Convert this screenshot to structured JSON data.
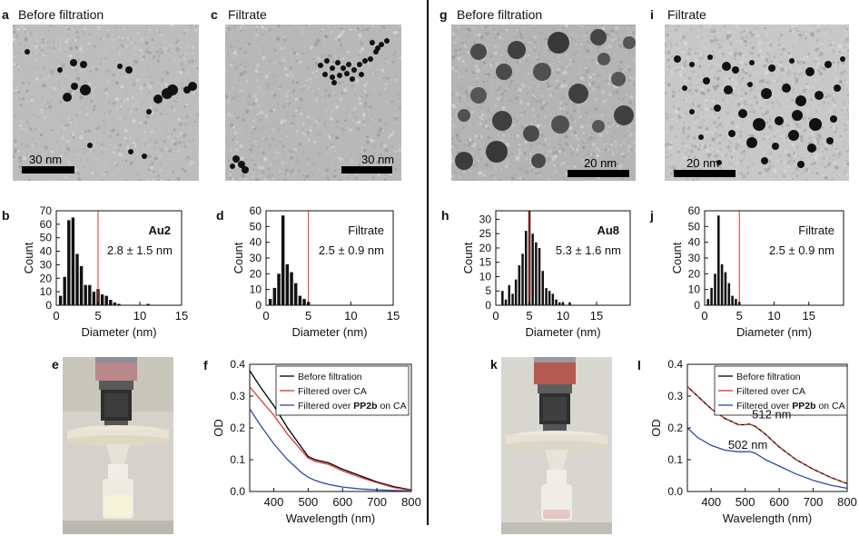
{
  "panels": {
    "a": {
      "letter": "a",
      "title": "Before filtration",
      "scale": "30 nm"
    },
    "c": {
      "letter": "c",
      "title": "Filtrate",
      "scale": "30 nm"
    },
    "g": {
      "letter": "g",
      "title": "Before filtration",
      "scale": "20 nm"
    },
    "i": {
      "letter": "i",
      "title": "Filtrate",
      "scale": "20 nm"
    },
    "e": {
      "letter": "e"
    },
    "k": {
      "letter": "k"
    }
  },
  "colors": {
    "red_line": "#e0302a",
    "black_line": "#000000",
    "blue_line": "#2a4aa0",
    "tem_bg": "#b9b9b9"
  },
  "chart_data": [
    {
      "id": "b",
      "letter": "b",
      "type": "bar",
      "xlabel": "Diameter (nm)",
      "ylabel": "Count",
      "xlim": [
        0,
        15
      ],
      "ylim": [
        0,
        70
      ],
      "xticks": [
        0,
        5,
        10,
        15
      ],
      "yticks": [
        0,
        10,
        20,
        30,
        40,
        50,
        60,
        70
      ],
      "bin_width": 0.5,
      "bins": [
        0.5,
        1.0,
        1.5,
        2.0,
        2.5,
        3.0,
        3.5,
        4.0,
        4.5,
        5.0,
        5.5,
        6.0,
        6.5,
        7.0,
        7.5,
        11.0
      ],
      "values": [
        7,
        21,
        63,
        65,
        38,
        29,
        15,
        15,
        10,
        12,
        8,
        7,
        4,
        2,
        1,
        1
      ],
      "marker_x": 5,
      "annotation_bold": "Au2",
      "annotation": "2.8 ± 1.5 nm"
    },
    {
      "id": "d",
      "letter": "d",
      "type": "bar",
      "xlabel": "Diameter (nm)",
      "ylabel": "Count",
      "xlim": [
        0,
        15
      ],
      "ylim": [
        0,
        60
      ],
      "xticks": [
        0,
        5,
        10,
        15
      ],
      "yticks": [
        0,
        10,
        20,
        30,
        40,
        50,
        60
      ],
      "bin_width": 0.5,
      "bins": [
        0.5,
        1.0,
        1.5,
        2.0,
        2.5,
        3.0,
        3.5,
        4.0,
        4.5,
        5.0
      ],
      "values": [
        4,
        11,
        20,
        57,
        26,
        21,
        14,
        6,
        4,
        2
      ],
      "marker_x": 5,
      "annotation_bold": "",
      "annotation_line1": "Filtrate",
      "annotation": "2.5 ± 0.9 nm"
    },
    {
      "id": "h",
      "letter": "h",
      "type": "bar",
      "xlabel": "Diameter (nm)",
      "ylabel": "Count",
      "xlim": [
        0,
        20
      ],
      "ylim": [
        0,
        33
      ],
      "xticks": [
        0,
        5,
        10,
        15
      ],
      "yticks": [
        0,
        5,
        10,
        15,
        20,
        25,
        30
      ],
      "bin_width": 0.5,
      "bins": [
        1.0,
        1.5,
        2.0,
        2.5,
        3.0,
        3.5,
        4.0,
        4.5,
        5.0,
        5.5,
        6.0,
        6.5,
        7.0,
        7.5,
        8.0,
        8.5,
        9.0,
        9.5,
        10.0,
        11.0
      ],
      "values": [
        5,
        2,
        7,
        4,
        9,
        14,
        18,
        26,
        33,
        25,
        22,
        20,
        12,
        6,
        5,
        4,
        2,
        1,
        1,
        1
      ],
      "marker_x": 5,
      "annotation_bold": "Au8",
      "annotation": "5.3 ± 1.6 nm"
    },
    {
      "id": "j",
      "letter": "j",
      "type": "bar",
      "xlabel": "Diameter (nm)",
      "ylabel": "Count",
      "xlim": [
        0,
        20
      ],
      "ylim": [
        0,
        60
      ],
      "xticks": [
        0,
        5,
        10,
        15
      ],
      "yticks": [
        0,
        10,
        20,
        30,
        40,
        50,
        60
      ],
      "bin_width": 0.5,
      "bins": [
        0.5,
        1.0,
        1.5,
        2.0,
        2.5,
        3.0,
        3.5,
        4.0,
        4.5,
        5.0
      ],
      "values": [
        4,
        11,
        20,
        57,
        26,
        21,
        14,
        6,
        4,
        2
      ],
      "marker_x": 5,
      "annotation_bold": "",
      "annotation_line1": "Filtrate",
      "annotation": "2.5 ± 0.9 nm"
    },
    {
      "id": "f",
      "letter": "f",
      "type": "line",
      "xlabel": "Wavelength (nm)",
      "ylabel": "OD",
      "xlim": [
        330,
        800
      ],
      "ylim": [
        0,
        0.4
      ],
      "xticks": [
        400,
        500,
        600,
        700,
        800
      ],
      "yticks": [
        0.0,
        0.1,
        0.2,
        0.3,
        0.4
      ],
      "x": [
        330,
        360,
        400,
        440,
        480,
        500,
        520,
        540,
        560,
        580,
        600,
        650,
        700,
        750,
        800
      ],
      "series": [
        {
          "name": "Before filtration",
          "color": "#000000",
          "values": [
            0.38,
            0.33,
            0.27,
            0.2,
            0.14,
            0.11,
            0.1,
            0.095,
            0.09,
            0.08,
            0.07,
            0.05,
            0.03,
            0.015,
            0.005
          ]
        },
        {
          "name": "Filtered over CA",
          "color": "#e0302a",
          "values": [
            0.33,
            0.29,
            0.24,
            0.18,
            0.13,
            0.105,
            0.095,
            0.09,
            0.085,
            0.075,
            0.065,
            0.045,
            0.028,
            0.012,
            0.004
          ]
        },
        {
          "name_prefix": "Filtered over ",
          "name_bold": "PP2b",
          "name_suffix": " on CA",
          "color": "#2a4aa0",
          "values": [
            0.26,
            0.21,
            0.15,
            0.1,
            0.06,
            0.045,
            0.035,
            0.028,
            0.022,
            0.018,
            0.014,
            0.008,
            0.005,
            0.003,
            0.002
          ]
        }
      ]
    },
    {
      "id": "l",
      "letter": "l",
      "type": "line",
      "xlabel": "Wavelength (nm)",
      "ylabel": "OD",
      "xlim": [
        330,
        800
      ],
      "ylim": [
        0,
        0.4
      ],
      "xticks": [
        400,
        500,
        600,
        700,
        800
      ],
      "yticks": [
        0.0,
        0.1,
        0.2,
        0.3,
        0.4
      ],
      "x": [
        330,
        360,
        400,
        440,
        480,
        500,
        512,
        530,
        560,
        600,
        650,
        700,
        750,
        800
      ],
      "series": [
        {
          "name": "Before filtration",
          "color": "#000000",
          "values": [
            0.33,
            0.3,
            0.26,
            0.23,
            0.21,
            0.21,
            0.212,
            0.205,
            0.18,
            0.14,
            0.1,
            0.07,
            0.045,
            0.025
          ]
        },
        {
          "name": "Filtered over CA",
          "color": "#e0302a",
          "values": [
            0.33,
            0.3,
            0.26,
            0.23,
            0.21,
            0.21,
            0.212,
            0.205,
            0.18,
            0.14,
            0.1,
            0.07,
            0.045,
            0.025
          ]
        },
        {
          "name_prefix": "Filtered over ",
          "name_bold": "PP2b",
          "name_suffix": " on CA",
          "color": "#2a4aa0",
          "values": [
            0.2,
            0.17,
            0.145,
            0.13,
            0.125,
            0.125,
            0.126,
            0.12,
            0.1,
            0.08,
            0.055,
            0.035,
            0.02,
            0.01
          ]
        }
      ],
      "annotations": [
        {
          "text": "512 nm",
          "x": 520,
          "y": 0.23
        },
        {
          "text": "502 nm",
          "x": 450,
          "y": 0.135
        }
      ]
    }
  ]
}
